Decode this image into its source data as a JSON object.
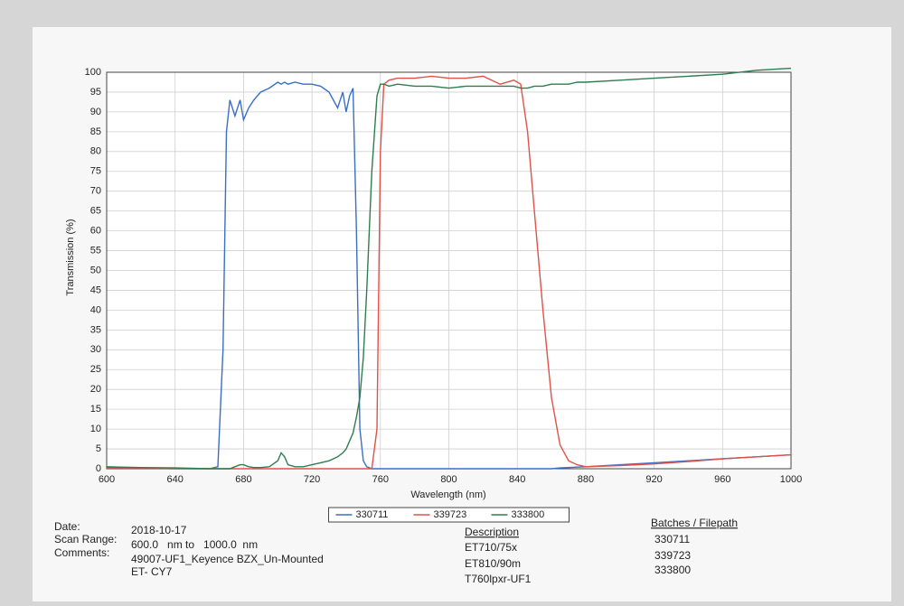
{
  "chart_data": {
    "type": "line",
    "x_label": "Wavelength (nm)",
    "y_label": "Transmission (%)",
    "x": [
      600,
      620,
      640,
      660,
      665,
      668,
      670,
      672,
      675,
      678,
      680,
      683,
      686,
      690,
      695,
      700,
      702,
      704,
      706,
      710,
      715,
      720,
      725,
      730,
      735,
      738,
      740,
      742,
      744,
      746,
      748,
      750,
      752,
      755,
      758,
      760,
      762,
      765,
      770,
      780,
      790,
      800,
      810,
      820,
      830,
      838,
      842,
      846,
      850,
      855,
      860,
      865,
      870,
      875,
      880,
      900,
      920,
      940,
      960,
      980,
      1000
    ],
    "series": [
      {
        "name": "330711",
        "color": "#3a6fc4",
        "values": [
          0.3,
          0.2,
          0,
          0,
          0.5,
          30,
          85,
          93,
          89,
          93,
          88,
          91,
          93,
          95,
          96,
          97.5,
          97,
          97.5,
          97,
          97.5,
          97,
          97,
          96.5,
          95,
          91,
          95,
          90,
          94,
          96,
          60,
          10,
          2,
          0.5,
          0,
          0,
          0,
          0,
          0,
          0,
          0,
          0,
          0,
          0,
          0,
          0,
          0,
          0,
          0,
          0,
          0,
          0,
          0.2,
          0.3,
          0.4,
          0.5,
          1,
          1.5,
          2,
          2.5,
          3,
          3.5
        ]
      },
      {
        "name": "339723",
        "color": "#e0514a",
        "values": [
          0,
          0,
          0,
          0,
          0,
          0,
          0,
          0,
          0,
          0,
          0,
          0,
          0,
          0,
          0,
          0,
          0,
          0,
          0,
          0,
          0,
          0,
          0,
          0,
          0,
          0,
          0,
          0,
          0,
          0,
          0,
          0,
          0,
          0,
          10,
          80,
          97,
          98,
          98.5,
          98.5,
          99,
          98.5,
          98.5,
          99,
          97,
          98,
          97,
          85,
          65,
          40,
          18,
          6,
          2,
          1,
          0.5,
          0.8,
          1.2,
          1.8,
          2.5,
          3,
          3.5
        ]
      },
      {
        "name": "333800",
        "color": "#2e7d4f",
        "values": [
          0.5,
          0.3,
          0.2,
          0,
          0,
          0,
          0,
          0,
          0.5,
          1,
          1,
          0.5,
          0.3,
          0.3,
          0.5,
          2,
          4,
          3,
          1,
          0.5,
          0.5,
          1,
          1.5,
          2,
          3,
          4,
          5,
          7,
          9,
          13,
          18,
          28,
          45,
          75,
          94,
          97,
          97,
          96.5,
          97,
          96.5,
          96.5,
          96,
          96.5,
          96.5,
          96.5,
          96.5,
          96,
          96,
          96.5,
          96.5,
          97,
          97,
          97,
          97.5,
          97.5,
          98,
          98.5,
          99,
          99.5,
          100.5,
          101
        ]
      }
    ],
    "xlim": [
      600,
      1000
    ],
    "ylim": [
      0,
      100
    ],
    "xticks": [
      600,
      640,
      680,
      720,
      760,
      800,
      840,
      880,
      920,
      960,
      1000
    ],
    "yticks": [
      0,
      5,
      10,
      15,
      20,
      25,
      30,
      35,
      40,
      45,
      50,
      55,
      60,
      65,
      70,
      75,
      80,
      85,
      90,
      95,
      100
    ],
    "grid": true,
    "legend": "bottom"
  },
  "report": {
    "date_label": "Date:",
    "date": "2018-10-17",
    "scan_label": "Scan Range:",
    "scan": "600.0   nm to   1000.0  nm",
    "comments_label": "Comments:",
    "comments": [
      "49007-UF1_Keyence BZX_Un-Mounted",
      "ET- CY7"
    ],
    "description_header": "Description",
    "descriptions": [
      "ET710/75x",
      "ET810/90m",
      "T760lpxr-UF1"
    ],
    "batches_header": "Batches / Filepath",
    "batches": [
      "330711",
      "339723",
      "333800"
    ]
  }
}
